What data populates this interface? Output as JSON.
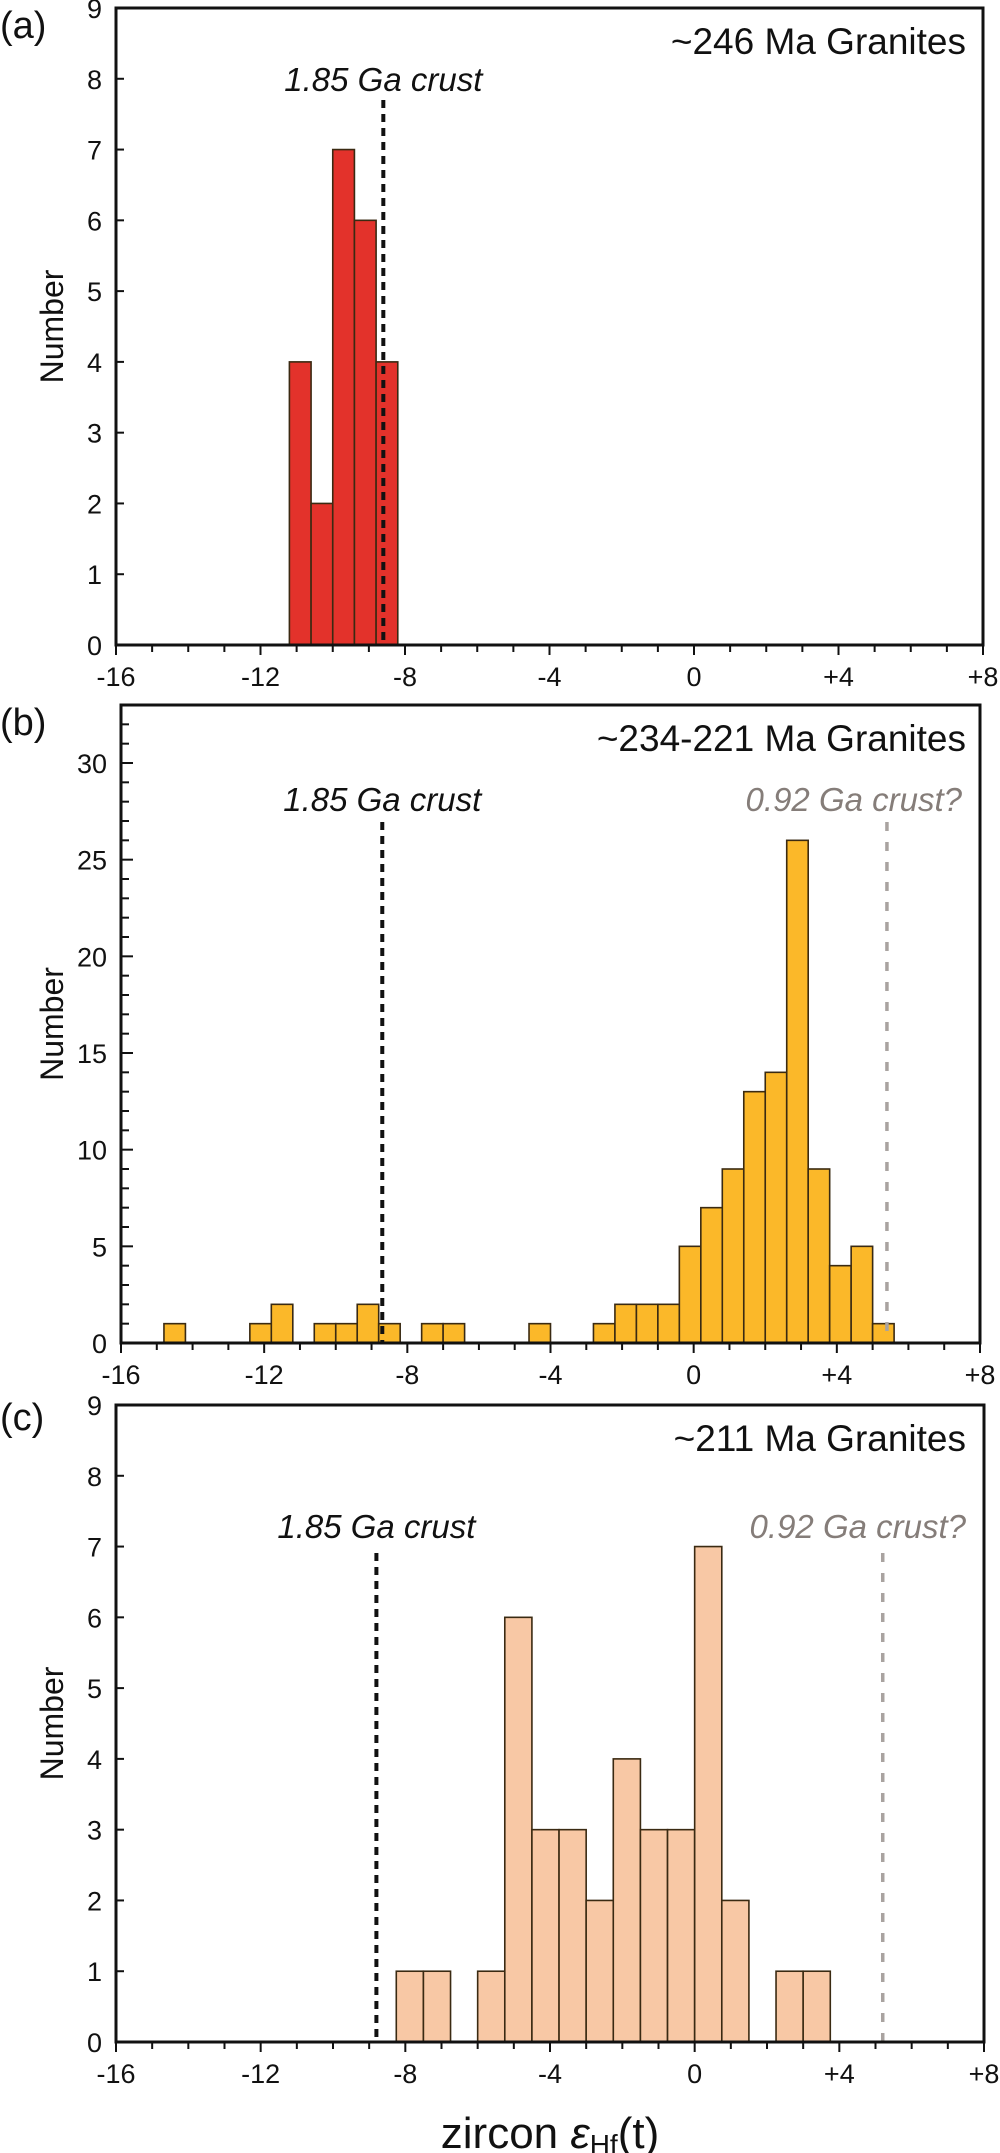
{
  "chart_data": [
    {
      "type": "bar",
      "panel_label": "(a)",
      "title": "~246 Ma Granites",
      "ylabel": "Number",
      "xlim": [
        -16,
        8
      ],
      "ylim": [
        0,
        9
      ],
      "x_tick_labels": [
        "-16",
        "-12",
        "-8",
        "-4",
        "0",
        "+4",
        "+8"
      ],
      "y_tick_labels": [
        "0",
        "1",
        "2",
        "3",
        "4",
        "5",
        "6",
        "7",
        "8",
        "9"
      ],
      "bar_color": "#e3322b",
      "bins": [
        {
          "from": -11.2,
          "to": -10.6,
          "count": 4
        },
        {
          "from": -10.6,
          "to": -10.0,
          "count": 2
        },
        {
          "from": -10.0,
          "to": -9.4,
          "count": 7
        },
        {
          "from": -9.4,
          "to": -8.8,
          "count": 6
        },
        {
          "from": -8.8,
          "to": -8.2,
          "count": 4
        }
      ],
      "reference_lines": [
        {
          "label": "1.85 Ga crust",
          "x": -8.6,
          "color": "#111111"
        }
      ]
    },
    {
      "type": "bar",
      "panel_label": "(b)",
      "title": "~234-221 Ma Granites",
      "ylabel": "Number",
      "xlim": [
        -16,
        8
      ],
      "ylim": [
        0,
        33
      ],
      "x_tick_labels": [
        "-16",
        "-12",
        "-8",
        "-4",
        "0",
        "+4",
        "+8"
      ],
      "y_tick_labels": [
        "0",
        "5",
        "10",
        "15",
        "20",
        "25",
        "30"
      ],
      "bar_color": "#fbb829",
      "bins": [
        {
          "from": -14.8,
          "to": -14.2,
          "count": 1
        },
        {
          "from": -12.4,
          "to": -11.8,
          "count": 1
        },
        {
          "from": -11.8,
          "to": -11.2,
          "count": 2
        },
        {
          "from": -10.6,
          "to": -10.0,
          "count": 1
        },
        {
          "from": -10.0,
          "to": -9.4,
          "count": 1
        },
        {
          "from": -9.4,
          "to": -8.8,
          "count": 2
        },
        {
          "from": -8.8,
          "to": -8.2,
          "count": 1
        },
        {
          "from": -7.6,
          "to": -7.0,
          "count": 1
        },
        {
          "from": -7.0,
          "to": -6.4,
          "count": 1
        },
        {
          "from": -4.6,
          "to": -4.0,
          "count": 1
        },
        {
          "from": -2.8,
          "to": -2.2,
          "count": 1
        },
        {
          "from": -2.2,
          "to": -1.6,
          "count": 2
        },
        {
          "from": -1.6,
          "to": -1.0,
          "count": 2
        },
        {
          "from": -1.0,
          "to": -0.4,
          "count": 2
        },
        {
          "from": -0.4,
          "to": 0.2,
          "count": 5
        },
        {
          "from": 0.2,
          "to": 0.8,
          "count": 7
        },
        {
          "from": 0.8,
          "to": 1.4,
          "count": 9
        },
        {
          "from": 1.4,
          "to": 2.0,
          "count": 13
        },
        {
          "from": 2.0,
          "to": 2.6,
          "count": 14
        },
        {
          "from": 2.6,
          "to": 3.2,
          "count": 26
        },
        {
          "from": 3.2,
          "to": 3.8,
          "count": 9
        },
        {
          "from": 3.8,
          "to": 4.4,
          "count": 4
        },
        {
          "from": 4.4,
          "to": 5.0,
          "count": 5
        },
        {
          "from": 5.0,
          "to": 5.6,
          "count": 1
        }
      ],
      "reference_lines": [
        {
          "label": "1.85 Ga crust",
          "x": -8.7,
          "color": "#111111"
        },
        {
          "label": "0.92 Ga crust?",
          "x": 5.4,
          "color": "#a9a3a0",
          "label_color": "#857d79"
        }
      ]
    },
    {
      "type": "bar",
      "panel_label": "(c)",
      "title": "~211 Ma Granites",
      "ylabel": "Number",
      "xlabel_main": "zircon ",
      "xlabel_symbol": "ε",
      "xlabel_sub": "Hf",
      "xlabel_tail": "(t)",
      "xlim": [
        -16,
        8
      ],
      "ylim": [
        0,
        9
      ],
      "x_tick_labels": [
        "-16",
        "-12",
        "-8",
        "-4",
        "0",
        "+4",
        "+8"
      ],
      "y_tick_labels": [
        "0",
        "1",
        "2",
        "3",
        "4",
        "5",
        "6",
        "7",
        "8",
        "9"
      ],
      "bar_color": "#f8c8a5",
      "bins": [
        {
          "from": -8.25,
          "to": -7.5,
          "count": 1
        },
        {
          "from": -7.5,
          "to": -6.75,
          "count": 1
        },
        {
          "from": -6.0,
          "to": -5.25,
          "count": 1
        },
        {
          "from": -5.25,
          "to": -4.5,
          "count": 6
        },
        {
          "from": -4.5,
          "to": -3.75,
          "count": 3
        },
        {
          "from": -3.75,
          "to": -3.0,
          "count": 3
        },
        {
          "from": -3.0,
          "to": -2.25,
          "count": 2
        },
        {
          "from": -2.25,
          "to": -1.5,
          "count": 4
        },
        {
          "from": -1.5,
          "to": -0.75,
          "count": 3
        },
        {
          "from": -0.75,
          "to": 0.0,
          "count": 3
        },
        {
          "from": 0.0,
          "to": 0.75,
          "count": 7
        },
        {
          "from": 0.75,
          "to": 1.5,
          "count": 2
        },
        {
          "from": 2.25,
          "to": 3.0,
          "count": 1
        },
        {
          "from": 3.0,
          "to": 3.75,
          "count": 1
        }
      ],
      "reference_lines": [
        {
          "label": "1.85 Ga crust",
          "x": -8.8,
          "color": "#111111"
        },
        {
          "label": "0.92 Ga crust?",
          "x": 5.2,
          "color": "#a9a3a0",
          "label_color": "#857d79"
        }
      ]
    }
  ]
}
